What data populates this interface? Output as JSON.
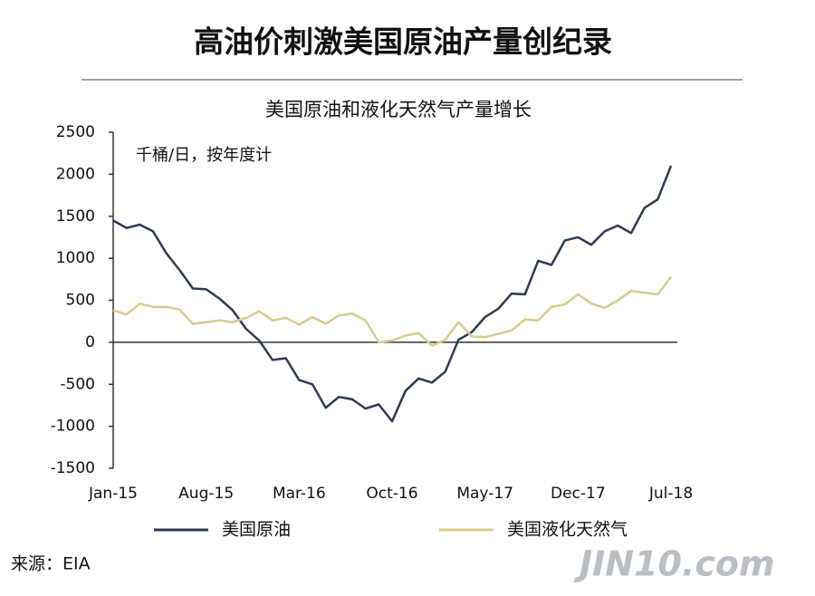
{
  "title": "高油价刺激美国原油产量创纪录",
  "source": "来源：EIA",
  "watermark": "JIN10.com",
  "chart_data": {
    "type": "line",
    "title": "美国原油和液化天然气产量增长",
    "y_label": "千桶/日，按年度计",
    "categories": [
      "Jan-15",
      null,
      null,
      null,
      null,
      null,
      null,
      "Aug-15",
      null,
      null,
      null,
      null,
      null,
      null,
      "Mar-16",
      null,
      null,
      null,
      null,
      null,
      null,
      "Oct-16",
      null,
      null,
      null,
      null,
      null,
      null,
      "May-17",
      null,
      null,
      null,
      null,
      null,
      null,
      "Dec-17",
      null,
      null,
      null,
      null,
      null,
      null,
      "Jul-18"
    ],
    "series": [
      {
        "name": "美国原油",
        "color": "#2e3a52",
        "values": [
          1450,
          1360,
          1400,
          1320,
          1060,
          860,
          640,
          630,
          520,
          380,
          160,
          20,
          -210,
          -190,
          -450,
          -500,
          -780,
          -650,
          -680,
          -790,
          -740,
          -940,
          -580,
          -430,
          -480,
          -350,
          30,
          120,
          300,
          400,
          580,
          570,
          970,
          920,
          1210,
          1250,
          1160,
          1320,
          1390,
          1300,
          1600,
          1700,
          2100
        ]
      },
      {
        "name": "美国液化天然气",
        "color": "#d8cc8e",
        "values": [
          380,
          330,
          460,
          420,
          420,
          390,
          220,
          240,
          260,
          240,
          290,
          370,
          260,
          290,
          210,
          300,
          220,
          320,
          340,
          260,
          0,
          20,
          80,
          110,
          -40,
          30,
          240,
          70,
          60,
          100,
          140,
          270,
          260,
          420,
          450,
          570,
          460,
          410,
          500,
          610,
          590,
          570,
          780
        ]
      }
    ],
    "ylim": [
      -1500,
      2500
    ],
    "yticks": [
      -1500,
      -1000,
      -500,
      0,
      500,
      1000,
      1500,
      2000,
      2500
    ]
  }
}
